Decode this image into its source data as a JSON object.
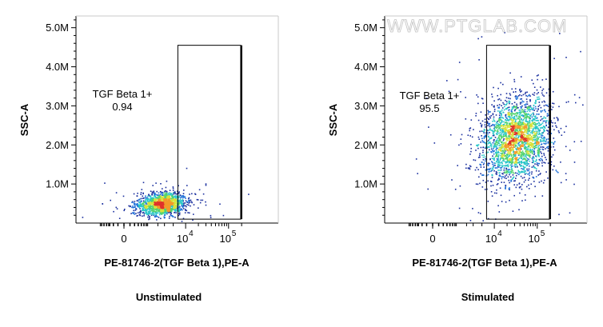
{
  "watermark": "WWW.PTGLAB.COM",
  "colors": {
    "density": [
      "#1a2f9e",
      "#1e6fd8",
      "#28c6c9",
      "#52d36e",
      "#d7e23a",
      "#f39a2b",
      "#e0332b"
    ],
    "gate": "#000000",
    "axis": "#000000"
  },
  "chart_data": [
    {
      "type": "scatter",
      "subtype": "flow-cytometry-density-plot",
      "title": "Unstimulated",
      "xlabel": "PE-81746-2(TGF Beta 1),PE-A",
      "ylabel": "SSC-A",
      "x_scale": "biexponential",
      "y_scale": "linear",
      "x_ticks": [
        {
          "value": 0,
          "label": "0"
        },
        {
          "value": 10000,
          "base": "10",
          "exp": "4"
        },
        {
          "value": 100000,
          "base": "10",
          "exp": "5"
        }
      ],
      "ylim": [
        0,
        5300000
      ],
      "y_ticks": [
        {
          "value": 1000000,
          "label": "1.0M"
        },
        {
          "value": 2000000,
          "label": "2.0M"
        },
        {
          "value": 3000000,
          "label": "3.0M"
        },
        {
          "value": 4000000,
          "label": "4.0M"
        },
        {
          "value": 5000000,
          "label": "5.0M"
        }
      ],
      "gate": {
        "name": "TGF Beta 1+",
        "percent": "0.94",
        "x_range": [
          6500,
          190000
        ],
        "y_range": [
          100000,
          4550000
        ]
      },
      "population": {
        "x_center": 2500,
        "y_center": 500000,
        "n_events": 1500
      }
    },
    {
      "type": "scatter",
      "subtype": "flow-cytometry-density-plot",
      "title": "Stimulated",
      "xlabel": "PE-81746-2(TGF Beta 1),PE-A",
      "ylabel": "SSC-A",
      "x_scale": "biexponential",
      "y_scale": "linear",
      "x_ticks": [
        {
          "value": 0,
          "label": "0"
        },
        {
          "value": 10000,
          "base": "10",
          "exp": "4"
        },
        {
          "value": 100000,
          "base": "10",
          "exp": "5"
        }
      ],
      "ylim": [
        0,
        5300000
      ],
      "y_ticks": [
        {
          "value": 1000000,
          "label": "1.0M"
        },
        {
          "value": 2000000,
          "label": "2.0M"
        },
        {
          "value": 3000000,
          "label": "3.0M"
        },
        {
          "value": 4000000,
          "label": "4.0M"
        },
        {
          "value": 5000000,
          "label": "5.0M"
        }
      ],
      "gate": {
        "name": "TGF Beta 1+",
        "percent": "95.5",
        "x_range": [
          6500,
          190000
        ],
        "y_range": [
          100000,
          4550000
        ]
      },
      "population": {
        "x_center": 32000,
        "y_center": 2150000,
        "n_events": 2600
      }
    }
  ]
}
